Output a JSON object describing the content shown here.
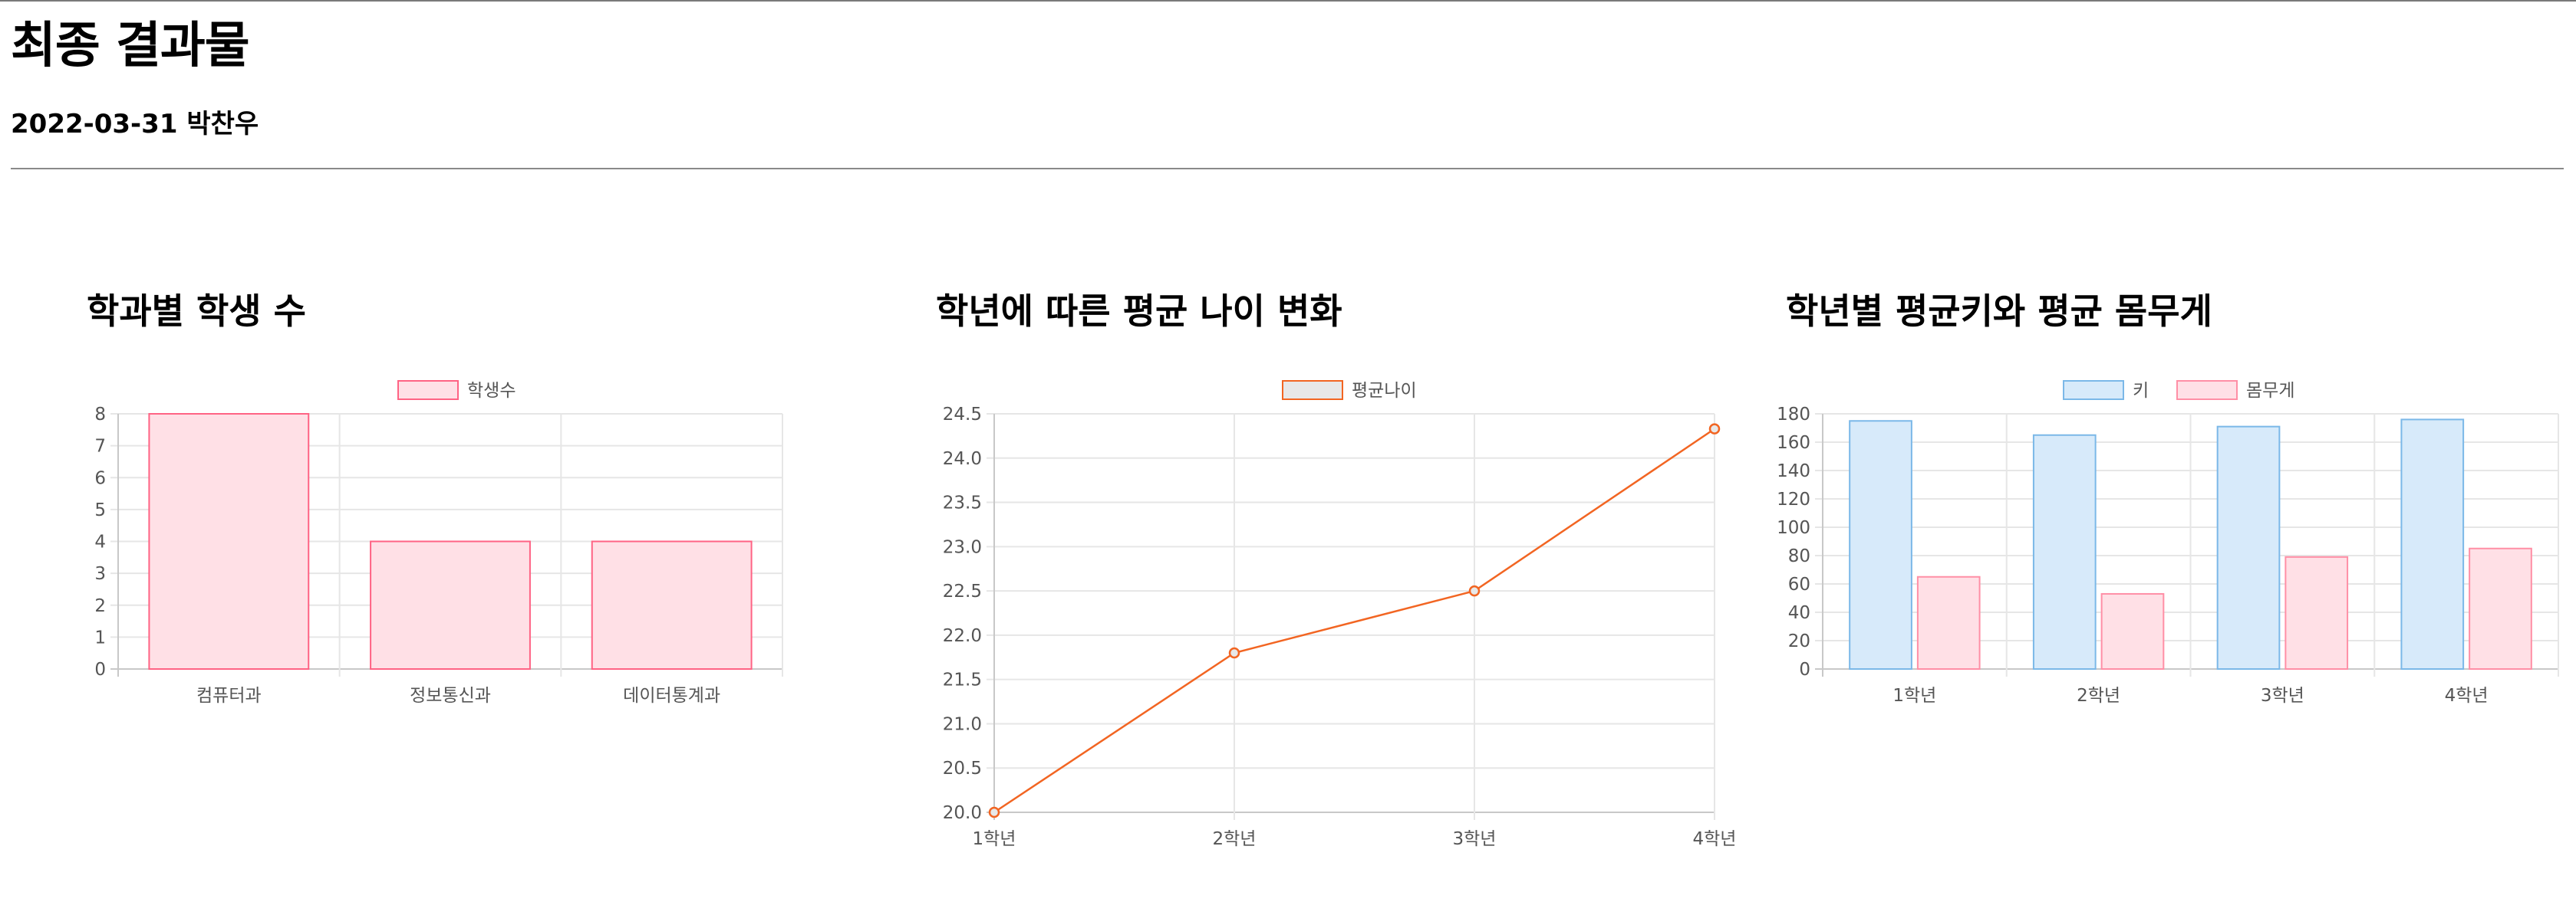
{
  "page": {
    "title": "최종 결과물",
    "subtitle": "2022-03-31 박찬우"
  },
  "chart_data": [
    {
      "type": "bar",
      "title": "학과별 학생 수",
      "categories": [
        "컴퓨터과",
        "정보통신과",
        "데이터통계과"
      ],
      "series": [
        {
          "name": "학생수",
          "values": [
            8,
            4,
            4
          ],
          "fill": "#ffe0e6",
          "stroke": "#ff6384"
        }
      ],
      "ylim": [
        0,
        8
      ],
      "yticks": [
        "0",
        "1",
        "2",
        "3",
        "4",
        "5",
        "6",
        "7",
        "8"
      ],
      "grid": true,
      "legend": "top-center"
    },
    {
      "type": "line",
      "title": "학년에 따른 평균 나이 변화",
      "categories": [
        "1학년",
        "2학년",
        "3학년",
        "4학년"
      ],
      "series": [
        {
          "name": "평균나이",
          "values": [
            20.0,
            21.8,
            22.5,
            24.33
          ],
          "fill": "#e8e8e8",
          "stroke": "#f26522"
        }
      ],
      "ylim": [
        20.0,
        24.5
      ],
      "yticks": [
        "20.0",
        "20.5",
        "21.0",
        "21.5",
        "22.0",
        "22.5",
        "23.0",
        "23.5",
        "24.0",
        "24.5"
      ],
      "grid": true,
      "legend": "top-center"
    },
    {
      "type": "bar",
      "title": "학년별 평균키와 평균 몸무게",
      "categories": [
        "1학년",
        "2학년",
        "3학년",
        "4학년"
      ],
      "series": [
        {
          "name": "키",
          "values": [
            175,
            165,
            171,
            176
          ],
          "fill": "#d7eafa",
          "stroke": "#7bb8e8"
        },
        {
          "name": "몸무게",
          "values": [
            65,
            53,
            79,
            85
          ],
          "fill": "#ffe0e6",
          "stroke": "#ff8fa6"
        }
      ],
      "ylim": [
        0,
        180
      ],
      "yticks": [
        "0",
        "20",
        "40",
        "60",
        "80",
        "100",
        "120",
        "140",
        "160",
        "180"
      ],
      "grid": true,
      "legend": "top-center"
    }
  ]
}
